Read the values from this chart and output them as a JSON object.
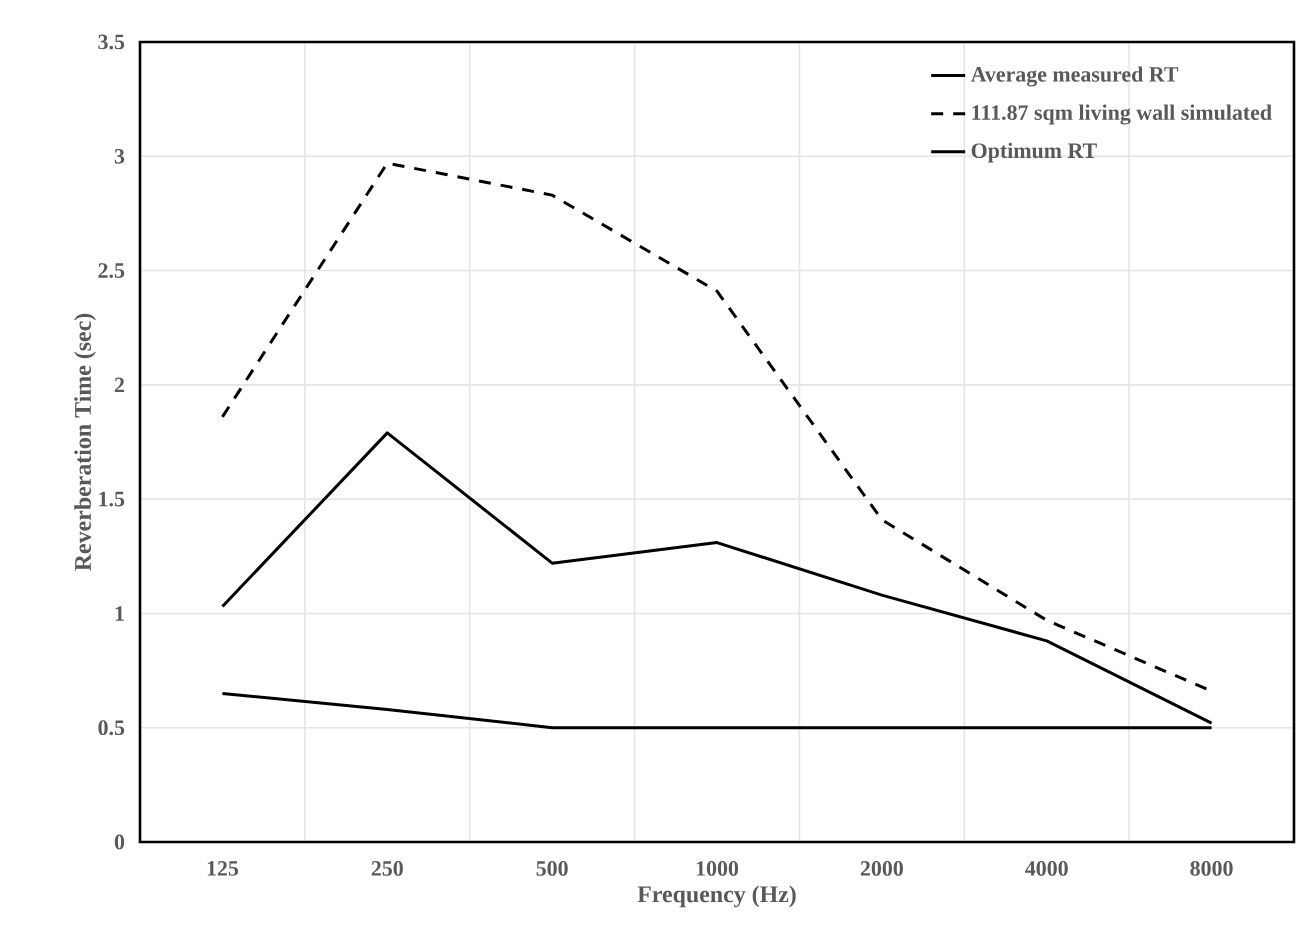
{
  "chart_data": {
    "type": "line",
    "xlabel": "Frequency (Hz)",
    "ylabel": "Reverberation Time (sec)",
    "categories": [
      "125",
      "250",
      "500",
      "1000",
      "2000",
      "4000",
      "8000"
    ],
    "series": [
      {
        "name": "Average measured RT",
        "color": "#000000",
        "line_style": "solid",
        "values": [
          1.03,
          1.79,
          1.22,
          1.31,
          1.08,
          0.88,
          0.52
        ]
      },
      {
        "name": "111.87 sqm living wall simulated",
        "color": "#000000",
        "line_style": "dashed",
        "values": [
          1.86,
          2.97,
          2.83,
          2.41,
          1.41,
          0.97,
          0.66
        ]
      },
      {
        "name": "Optimum RT",
        "color": "#000000",
        "line_style": "solid",
        "values": [
          0.65,
          0.58,
          0.5,
          0.5,
          0.5,
          0.5,
          0.5
        ]
      }
    ],
    "ylim": [
      0,
      3.5
    ],
    "yticks": [
      0,
      0.5,
      1,
      1.5,
      2,
      2.5,
      3,
      3.5
    ],
    "grid": true,
    "legend": "top right"
  }
}
